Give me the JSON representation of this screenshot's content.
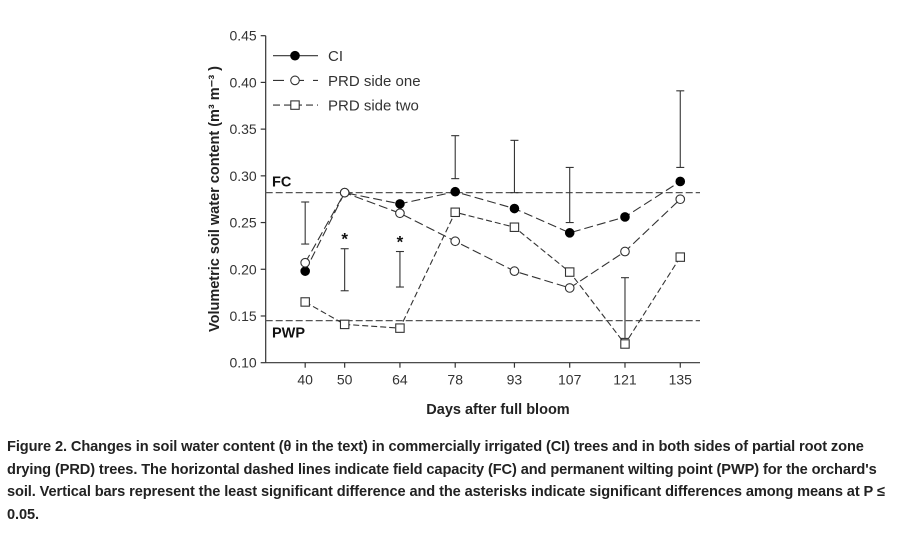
{
  "chart_data": {
    "type": "line",
    "xlabel": "Days after full bloom",
    "ylabel": "Volumetric soil water content (m³ m⁻³ )",
    "xlim": [
      30,
      140
    ],
    "ylim": [
      0.1,
      0.45
    ],
    "x_ticks": [
      40,
      50,
      64,
      78,
      93,
      107,
      121,
      135
    ],
    "y_ticks": [
      "0.10",
      "0.15",
      "0.20",
      "0.25",
      "0.30",
      "0.35",
      "0.40",
      "0.45"
    ],
    "grid": false,
    "legend_position": "top-left",
    "series": [
      {
        "name": "CI",
        "marker": "filled-circle",
        "line": "long-dash (solid in legend)",
        "color": "#000000",
        "x": [
          40,
          50,
          64,
          78,
          93,
          107,
          121,
          135
        ],
        "y": [
          0.198,
          0.282,
          0.27,
          0.283,
          0.265,
          0.239,
          0.256,
          0.294
        ]
      },
      {
        "name": "PRD side one",
        "marker": "open-circle",
        "line": "long-dash",
        "color": "#000000",
        "x": [
          40,
          50,
          64,
          78,
          93,
          107,
          121,
          135
        ],
        "y": [
          0.207,
          0.282,
          0.26,
          0.23,
          0.198,
          0.18,
          0.219,
          0.275
        ]
      },
      {
        "name": "PRD side two",
        "marker": "open-square",
        "line": "short-dash",
        "color": "#000000",
        "x": [
          40,
          50,
          64,
          78,
          93,
          107,
          121,
          135
        ],
        "y": [
          0.165,
          0.141,
          0.137,
          0.261,
          0.245,
          0.197,
          0.12,
          0.213
        ]
      }
    ],
    "lsd_bars": [
      {
        "x": 40,
        "low": 0.227,
        "high": 0.272
      },
      {
        "x": 50,
        "low": 0.177,
        "high": 0.222
      },
      {
        "x": 64,
        "low": 0.181,
        "high": 0.219
      },
      {
        "x": 78,
        "low": 0.297,
        "high": 0.343
      },
      {
        "x": 93,
        "low": 0.282,
        "high": 0.338
      },
      {
        "x": 107,
        "low": 0.25,
        "high": 0.309
      },
      {
        "x": 121,
        "low": 0.126,
        "high": 0.191
      },
      {
        "x": 135,
        "low": 0.309,
        "high": 0.391
      }
    ],
    "reference_lines": [
      {
        "label": "FC",
        "y": 0.282
      },
      {
        "label": "PWP",
        "y": 0.145
      }
    ],
    "significance_markers": [
      {
        "x": 50,
        "label": "*"
      },
      {
        "x": 64,
        "label": "*"
      }
    ]
  },
  "caption": "Figure 2. Changes in soil water content (θ in the text) in commercially irrigated (CI) trees and in both sides of partial root zone drying (PRD) trees. The horizontal dashed lines indicate field capacity (FC) and permanent wilting point (PWP) for the orchard's soil. Vertical bars represent the least significant difference and the asterisks indicate significant differences among means at P ≤ 0.05."
}
